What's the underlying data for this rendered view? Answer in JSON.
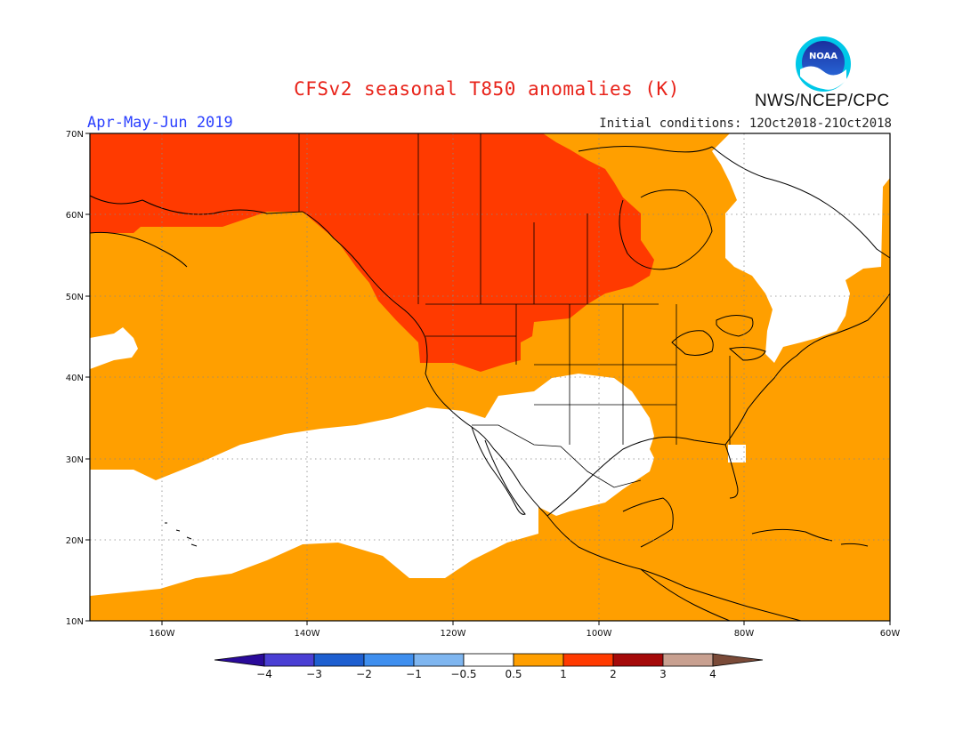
{
  "header": {
    "title": "CFSv2 seasonal T850 anomalies (K)",
    "period": "Apr-May-Jun 2019",
    "initial_conditions": "Initial conditions: 12Oct2018-21Oct2018",
    "agency": "NWS/NCEP/CPC",
    "logo_text": "NOAA"
  },
  "map": {
    "lat_labels": [
      "70N",
      "60N",
      "50N",
      "40N",
      "30N",
      "20N",
      "10N"
    ],
    "lon_labels": [
      "160W",
      "140W",
      "120W",
      "100W",
      "80W",
      "60W"
    ],
    "extent": {
      "lon_min": -170,
      "lon_max": -60,
      "lat_min": 10,
      "lat_max": 70
    },
    "grid": true
  },
  "colorbar": {
    "labels": [
      "-4",
      "-3",
      "-2",
      "-1",
      "-0.5",
      "0.5",
      "1",
      "2",
      "3",
      "4"
    ],
    "colors": [
      "#2a0a9a",
      "#4a3fd4",
      "#1e5fd0",
      "#3f8fef",
      "#7fb6f0",
      "#ffffff",
      "#ff9f00",
      "#ff3a00",
      "#a50a0a",
      "#c8a090",
      "#7a4a38"
    ]
  }
}
